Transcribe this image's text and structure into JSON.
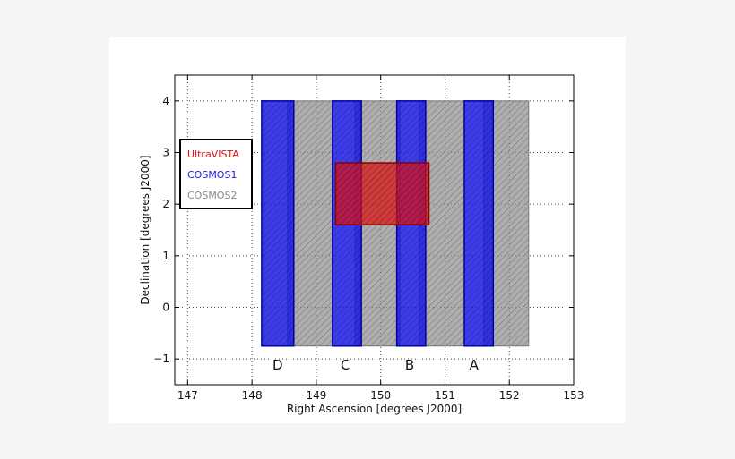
{
  "chart_data": {
    "type": "rect",
    "xlabel": "Right Ascension [degrees J2000]",
    "ylabel": "Declination [degrees J2000]",
    "xlim": [
      146.8,
      153
    ],
    "ylim": [
      -1.5,
      4.5
    ],
    "xticks": [
      147,
      148,
      149,
      150,
      151,
      152,
      153
    ],
    "xtick_labels": [
      "147",
      "148",
      "149",
      "150",
      "151",
      "152",
      "153"
    ],
    "yticks": [
      -1,
      0,
      1,
      2,
      3,
      4
    ],
    "ytick_labels": [
      "−1",
      "0",
      "1",
      "2",
      "3",
      "4"
    ],
    "grid": true,
    "legend_placement": "upper-left",
    "series": [
      {
        "name": "UltraVISTA",
        "color": "#dd1111",
        "rects": [
          {
            "x0": 149.3,
            "x1": 150.75,
            "y0": 1.6,
            "y1": 2.8
          }
        ]
      },
      {
        "name": "COSMOS1",
        "color": "#1a1ae6",
        "rects": [
          {
            "x0": 148.15,
            "x1": 148.65,
            "y0": -0.75,
            "y1": 4.0
          },
          {
            "x0": 149.25,
            "x1": 149.7,
            "y0": -0.75,
            "y1": 4.0
          },
          {
            "x0": 150.25,
            "x1": 150.7,
            "y0": -0.75,
            "y1": 4.0
          },
          {
            "x0": 151.3,
            "x1": 151.75,
            "y0": -0.75,
            "y1": 4.0
          }
        ]
      },
      {
        "name": "COSMOS2",
        "color": "#8f8f8f",
        "rects": [
          {
            "x0": 148.55,
            "x1": 149.25,
            "y0": -0.75,
            "y1": 4.0
          },
          {
            "x0": 149.6,
            "x1": 150.3,
            "y0": -0.75,
            "y1": 4.0
          },
          {
            "x0": 150.6,
            "x1": 151.3,
            "y0": -0.75,
            "y1": 4.0
          },
          {
            "x0": 151.6,
            "x1": 152.3,
            "y0": -0.75,
            "y1": 4.0
          }
        ]
      }
    ],
    "annotations": [
      {
        "text": "D",
        "x": 148.4,
        "y": -1.1
      },
      {
        "text": "C",
        "x": 149.45,
        "y": -1.1
      },
      {
        "text": "B",
        "x": 150.45,
        "y": -1.1
      },
      {
        "text": "A",
        "x": 151.45,
        "y": -1.1
      }
    ]
  }
}
